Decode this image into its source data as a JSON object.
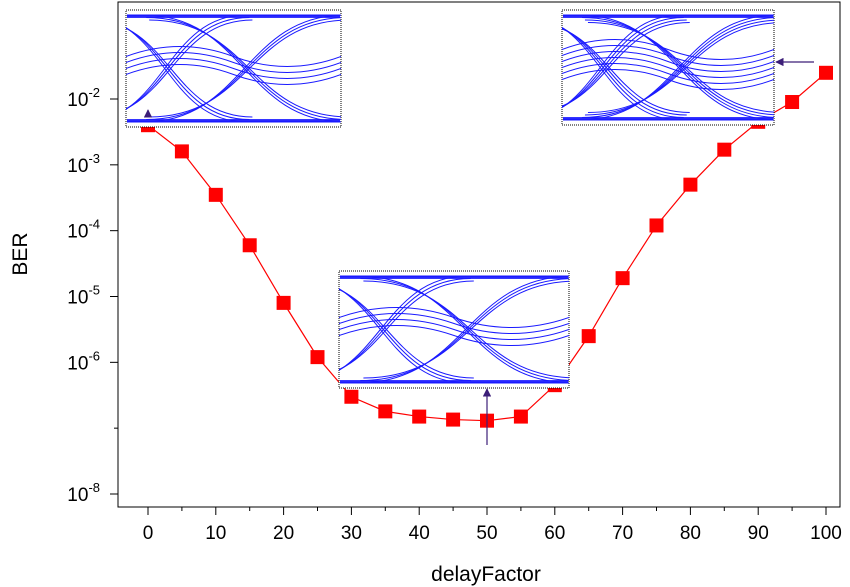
{
  "chart_data": {
    "type": "line",
    "title": "",
    "xlabel": "delayFactor",
    "ylabel": "BER",
    "x": [
      0,
      5,
      10,
      15,
      20,
      25,
      30,
      35,
      40,
      45,
      50,
      55,
      60,
      65,
      70,
      75,
      80,
      85,
      90,
      95,
      100
    ],
    "series": [
      {
        "values": [
          0.004,
          0.0016,
          0.00035,
          6e-05,
          8e-06,
          1.2e-06,
          3e-07,
          1.8e-07,
          1.5e-07,
          1.35e-07,
          1.3e-07,
          1.5e-07,
          4.5e-07,
          2.5e-06,
          1.9e-05,
          0.00012,
          0.0005,
          0.0017,
          0.0045,
          0.009,
          0.025
        ],
        "color": "#ff0000",
        "marker": "square",
        "marker_color": "#ff0000"
      }
    ],
    "xlim": [
      -4,
      102
    ],
    "ylim_log10": [
      -8.1,
      -1.35
    ],
    "y_scale": "log",
    "x_ticks": [
      0,
      10,
      20,
      30,
      40,
      50,
      60,
      70,
      80,
      90,
      100
    ],
    "y_ticks": [
      {
        "base": "10",
        "exp": "-8"
      },
      {
        "base": "10",
        "exp": "-6"
      },
      {
        "base": "10",
        "exp": "-5"
      },
      {
        "base": "10",
        "exp": "-4"
      },
      {
        "base": "10",
        "exp": "-3"
      },
      {
        "base": "10",
        "exp": "-2"
      }
    ],
    "grid": false,
    "legend": "none",
    "insets": [
      {
        "name": "eye-diagram-inset-left",
        "description_key": "eye diagram at delayFactor 0",
        "arrow_to_x": 0,
        "color": "#1a1aff"
      },
      {
        "name": "eye-diagram-inset-center",
        "arrow_to_x": 50,
        "color": "#1a1aff"
      },
      {
        "name": "eye-diagram-inset-right",
        "arrow_to_x": 100,
        "color": "#1a1aff"
      }
    ],
    "arrow_color": "#3c1e78"
  }
}
